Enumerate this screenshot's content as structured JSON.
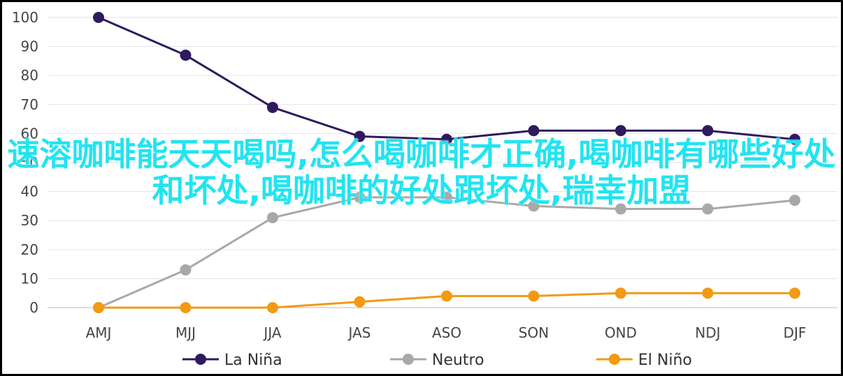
{
  "overlay_title": "速溶咖啡能天天喝吗,怎么喝咖啡才正确,喝咖啡有哪些好处和坏处,喝咖啡的好处跟坏处,瑞幸加盟",
  "chart_data": {
    "type": "line",
    "title": "",
    "xlabel": "",
    "ylabel": "",
    "categories": [
      "AMJ",
      "MJJ",
      "JJA",
      "JAS",
      "ASO",
      "SON",
      "OND",
      "NDJ",
      "DJF"
    ],
    "ylim": [
      0,
      100
    ],
    "yticks": [
      0,
      10,
      20,
      30,
      40,
      50,
      60,
      70,
      80,
      90,
      100
    ],
    "grid": true,
    "legend_position": "bottom",
    "series": [
      {
        "name": "La Niña",
        "color": "#2e1a5e",
        "values": [
          100,
          87,
          69,
          59,
          58,
          61,
          61,
          61,
          58
        ]
      },
      {
        "name": "Neutro",
        "color": "#a8a8a8",
        "values": [
          0,
          13,
          31,
          38,
          38,
          35,
          34,
          34,
          37
        ]
      },
      {
        "name": "El Niño",
        "color": "#f29a12",
        "values": [
          0,
          0,
          0,
          2,
          4,
          4,
          5,
          5,
          5
        ]
      }
    ]
  }
}
